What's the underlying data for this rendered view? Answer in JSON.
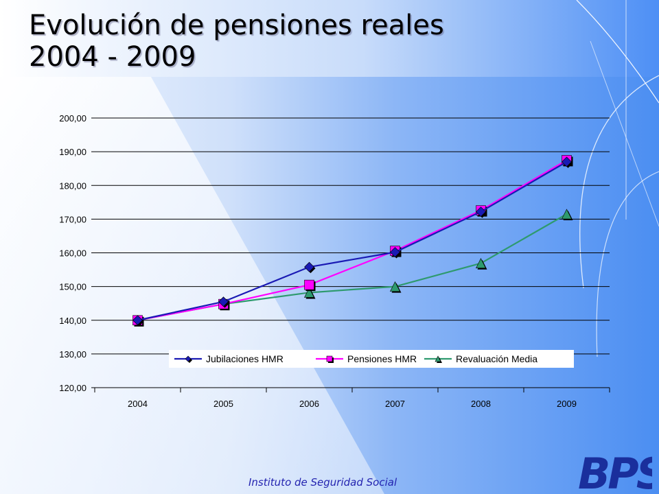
{
  "slide": {
    "title_line1": "Evolución de pensiones reales",
    "title_line2": "2004 - 2009",
    "footer": "Instituto de Seguridad Social",
    "logo_text": "BPS"
  },
  "colors": {
    "series_jubilaciones": "#1a1ab4",
    "series_pensiones": "#ff00ff",
    "series_revaluacion": "#2e9a6e"
  },
  "chart_data": {
    "type": "line",
    "categories": [
      "2004",
      "2005",
      "2006",
      "2007",
      "2008",
      "2009"
    ],
    "y_tick_labels": [
      "120,00",
      "130,00",
      "140,00",
      "150,00",
      "160,00",
      "170,00",
      "180,00",
      "190,00",
      "200,00"
    ],
    "ylim": [
      120,
      200
    ],
    "grid": true,
    "legend_position": "bottom-inside",
    "series": [
      {
        "name": "Jubilaciones  HMR",
        "marker": "diamond",
        "values": [
          140.0,
          145.5,
          155.8,
          160.2,
          172.2,
          187.0
        ]
      },
      {
        "name": "Pensiones  HMR",
        "marker": "square",
        "values": [
          140.0,
          144.8,
          150.5,
          160.6,
          172.6,
          187.5
        ]
      },
      {
        "name": "Revaluación Media",
        "marker": "triangle",
        "values": [
          140.0,
          144.8,
          148.2,
          150.0,
          156.9,
          171.5
        ]
      }
    ]
  }
}
